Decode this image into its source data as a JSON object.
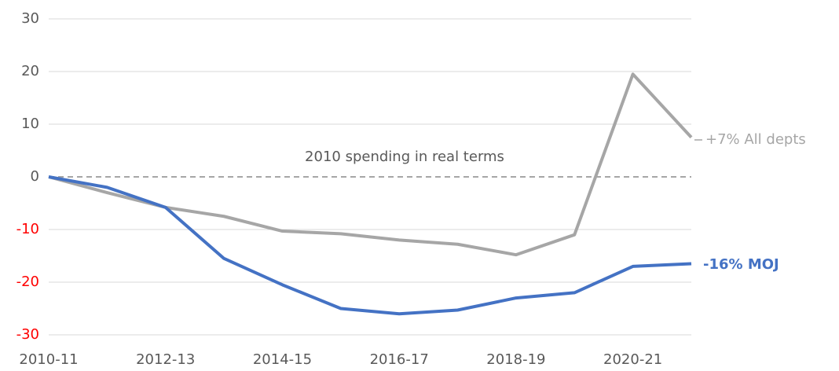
{
  "chart_data": {
    "type": "line",
    "categories": [
      "2010-11",
      null,
      "2012-13",
      null,
      "2014-15",
      null,
      "2016-17",
      null,
      "2018-19",
      null,
      "2020-21",
      null
    ],
    "series": [
      {
        "name": "All depts",
        "color": "#a6a6a6",
        "values": [
          0,
          -3,
          -5.8,
          -7.5,
          -10.3,
          -10.8,
          -12,
          -12.8,
          -14.8,
          -11,
          19.5,
          7.5
        ]
      },
      {
        "name": "MOJ",
        "color": "#4472c4",
        "values": [
          0,
          -2,
          -5.8,
          -15.5,
          -20.5,
          -25,
          -26,
          -25.3,
          -23,
          -22,
          -17,
          -16.5
        ]
      }
    ],
    "ylim": [
      -30,
      30
    ],
    "yticks": [
      -30,
      -20,
      -10,
      0,
      10,
      20,
      30
    ],
    "grid": true,
    "negative_tick_color": "#ff0000",
    "annotations": [
      "2010 spending in real terms",
      "+7% All depts",
      "-16% MOJ"
    ]
  }
}
